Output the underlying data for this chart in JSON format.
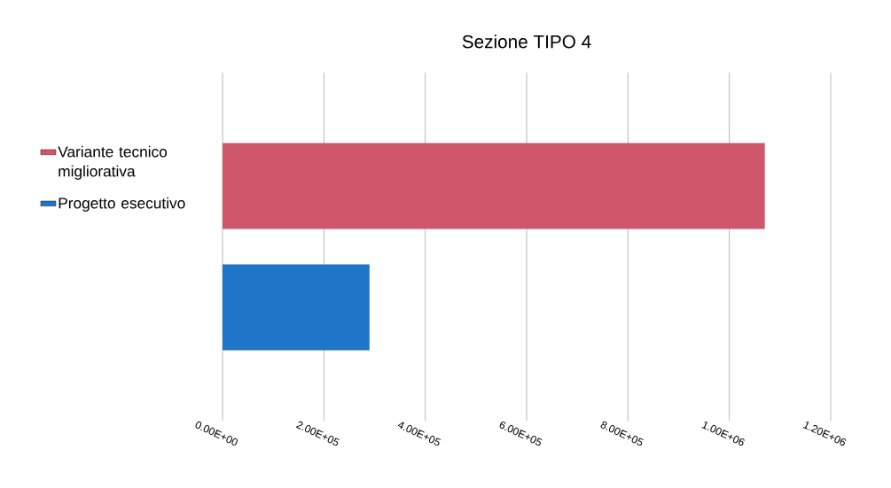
{
  "chart_data": {
    "type": "bar",
    "orientation": "horizontal",
    "title": "Sezione TIPO 4",
    "categories": [
      null
    ],
    "series": [
      {
        "name": "Variante tecnico migliorativa",
        "color": "#d0566b",
        "values": [
          1070000
        ]
      },
      {
        "name": "Progetto esecutivo",
        "color": "#1f76c8",
        "values": [
          290000
        ]
      }
    ],
    "xlim": [
      0,
      1200000
    ],
    "xticks": [
      {
        "value": 0,
        "label": "0.00E+00"
      },
      {
        "value": 200000,
        "label": "2.00E+05"
      },
      {
        "value": 400000,
        "label": "4.00E+05"
      },
      {
        "value": 600000,
        "label": "6.00E+05"
      },
      {
        "value": 800000,
        "label": "8.00E+05"
      },
      {
        "value": 1000000,
        "label": "1.00E+06"
      },
      {
        "value": 1200000,
        "label": "1.20E+06"
      }
    ],
    "grid": "x",
    "legend": "left"
  }
}
